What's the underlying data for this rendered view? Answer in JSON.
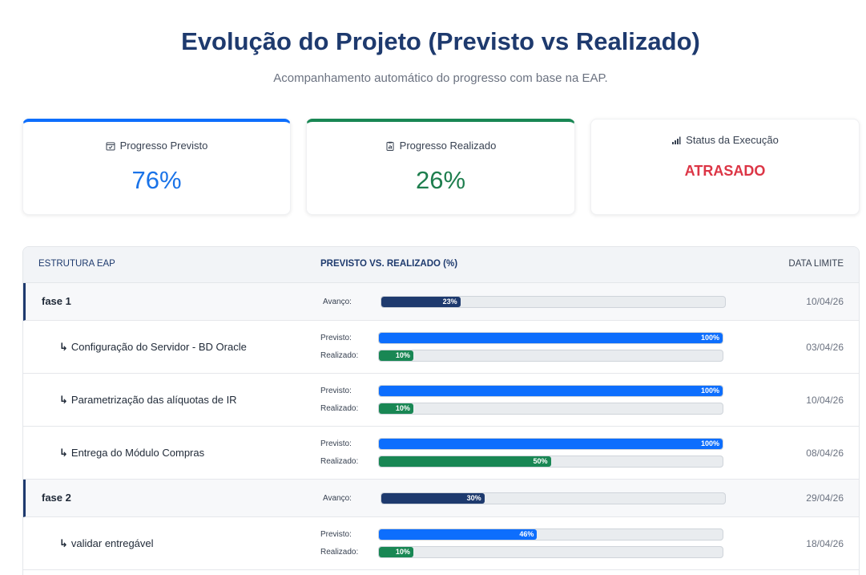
{
  "header": {
    "title": "Evolução do Projeto (Previsto vs Realizado)",
    "subtitle": "Acompanhamento automático do progresso com base na EAP."
  },
  "cards": {
    "planned": {
      "label": "Progresso Previsto",
      "value": "76%",
      "icon": "calendar-check-icon"
    },
    "actual": {
      "label": "Progresso Realizado",
      "value": "26%",
      "icon": "clipboard-data-icon"
    },
    "status": {
      "label": "Status da Execução",
      "value": "ATRASADO",
      "icon": "bar-chart-icon"
    }
  },
  "table": {
    "headers": {
      "structure": "ESTRUTURA EAP",
      "progress": "PREVISTO VS. REALIZADO (%)",
      "deadline": "DATA LIMITE"
    },
    "labels": {
      "advance": "Avanço:",
      "planned": "Previsto:",
      "actual": "Realizado:"
    },
    "rows": [
      {
        "type": "phase",
        "name": "fase 1",
        "advance": 23,
        "advance_label": "23%",
        "date": "10/04/26"
      },
      {
        "type": "task",
        "name": "Configuração do Servidor - BD Oracle",
        "planned": 100,
        "planned_label": "100%",
        "actual": 10,
        "actual_label": "10%",
        "date": "03/04/26"
      },
      {
        "type": "task",
        "name": "Parametrização das alíquotas de IR",
        "planned": 100,
        "planned_label": "100%",
        "actual": 10,
        "actual_label": "10%",
        "date": "10/04/26"
      },
      {
        "type": "task",
        "name": "Entrega do Módulo Compras",
        "planned": 100,
        "planned_label": "100%",
        "actual": 50,
        "actual_label": "50%",
        "date": "08/04/26"
      },
      {
        "type": "phase",
        "name": "fase 2",
        "advance": 30,
        "advance_label": "30%",
        "date": "29/04/26"
      },
      {
        "type": "task",
        "name": "validar entregável",
        "planned": 46,
        "planned_label": "46%",
        "actual": 10,
        "actual_label": "10%",
        "date": "18/04/26"
      }
    ]
  },
  "colors": {
    "planned": "#0d6efd",
    "actual": "#198754",
    "phase": "#1e3a6e",
    "status": "#dc3545"
  }
}
